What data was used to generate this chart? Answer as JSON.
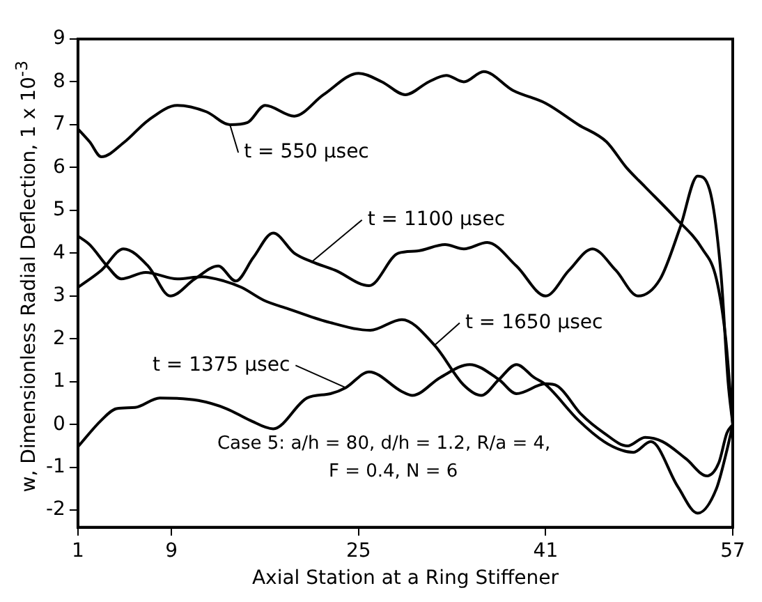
{
  "chart_data": {
    "type": "line",
    "xlabel": "Axial Station at a Ring Stiffener",
    "ylabel": "w, Dimensionless Radial Deflection, 1 x 10$^{-3}$",
    "xlim": [
      1,
      57
    ],
    "xticks": [
      1,
      9,
      25,
      41,
      57
    ],
    "ylim": [
      -2.4,
      9
    ],
    "yticks": [
      -2,
      -1,
      0,
      1,
      2,
      3,
      4,
      5,
      6,
      7,
      8,
      9
    ],
    "grid": false,
    "legend": "center",
    "marker": "none",
    "line_style": "solid",
    "annotations": [
      "Case 5: a/h = 80, d/h = 1.2, R/a = 4,",
      "F = 0.4, N = 6"
    ],
    "series": [
      {
        "name": "t = 550 μsec",
        "color": "#000000",
        "x": [
          1,
          2,
          3,
          5,
          7,
          9.5,
          12,
          14,
          15.5,
          17,
          19.5,
          22,
          25,
          27,
          29,
          31,
          32.5,
          34,
          35.7,
          38.2,
          41,
          43.8,
          46.2,
          47.9,
          49.5,
          52,
          54.4,
          55.6,
          56.4,
          57
        ],
        "values": [
          6.9,
          6.6,
          6.25,
          6.6,
          7.1,
          7.45,
          7.3,
          7.0,
          7.05,
          7.45,
          7.2,
          7.7,
          8.2,
          8.0,
          7.7,
          8.0,
          8.15,
          8.0,
          8.24,
          7.8,
          7.5,
          7.0,
          6.6,
          6.0,
          5.55,
          4.85,
          4.1,
          3.4,
          2.0,
          0
        ]
      },
      {
        "name": "t = 1100 μsec",
        "color": "#000000",
        "x": [
          1,
          3,
          4.9,
          7,
          8.9,
          11,
          13,
          14.5,
          16,
          17.7,
          19.5,
          21,
          23,
          25.9,
          28.4,
          30,
          32.4,
          34,
          36,
          38.5,
          41,
          43,
          45,
          47,
          48.9,
          50.8,
          52.5,
          54,
          55,
          56,
          56.6,
          57
        ],
        "values": [
          3.2,
          3.6,
          4.1,
          3.7,
          3.0,
          3.4,
          3.7,
          3.35,
          3.9,
          4.47,
          4.0,
          3.8,
          3.6,
          3.24,
          4.0,
          4.05,
          4.2,
          4.1,
          4.25,
          3.7,
          3.0,
          3.6,
          4.1,
          3.6,
          3.0,
          3.4,
          4.6,
          5.8,
          5.5,
          3.5,
          1.0,
          0
        ]
      },
      {
        "name": "t = 1375 μsec",
        "color": "#000000",
        "x": [
          1,
          3,
          4.3,
          5.9,
          8,
          11.3,
          13.7,
          15.7,
          17.7,
          20.6,
          22.6,
          23.9,
          25.9,
          28.7,
          29.6,
          32,
          34.5,
          37,
          38.5,
          41,
          42,
          44,
          46,
          48,
          49.5,
          51,
          53,
          54.8,
          55.8,
          56.5,
          57
        ],
        "values": [
          -0.52,
          0.1,
          0.37,
          0.4,
          0.62,
          0.56,
          0.37,
          0.1,
          -0.1,
          0.62,
          0.72,
          0.86,
          1.23,
          0.77,
          0.68,
          1.1,
          1.4,
          1.05,
          0.72,
          0.95,
          0.9,
          0.25,
          -0.2,
          -0.5,
          -0.3,
          -0.4,
          -0.8,
          -1.2,
          -0.9,
          -0.2,
          0
        ]
      },
      {
        "name": "t = 1650 μsec",
        "color": "#000000",
        "x": [
          1,
          2,
          3.5,
          4.7,
          6.8,
          9.5,
          11.6,
          13.5,
          15,
          16.9,
          19,
          22.3,
          26,
          28.7,
          31.5,
          34,
          35.5,
          37,
          38.5,
          40,
          41,
          43.8,
          46,
          47.5,
          48.5,
          50,
          52.3,
          54,
          55.6,
          56.5,
          57
        ],
        "values": [
          4.4,
          4.2,
          3.7,
          3.4,
          3.55,
          3.4,
          3.45,
          3.35,
          3.2,
          2.9,
          2.7,
          2.4,
          2.2,
          2.45,
          1.85,
          0.92,
          0.68,
          1.05,
          1.4,
          1.1,
          0.93,
          0.1,
          -0.4,
          -0.6,
          -0.65,
          -0.4,
          -1.45,
          -2.07,
          -1.5,
          -0.6,
          0
        ]
      }
    ]
  }
}
